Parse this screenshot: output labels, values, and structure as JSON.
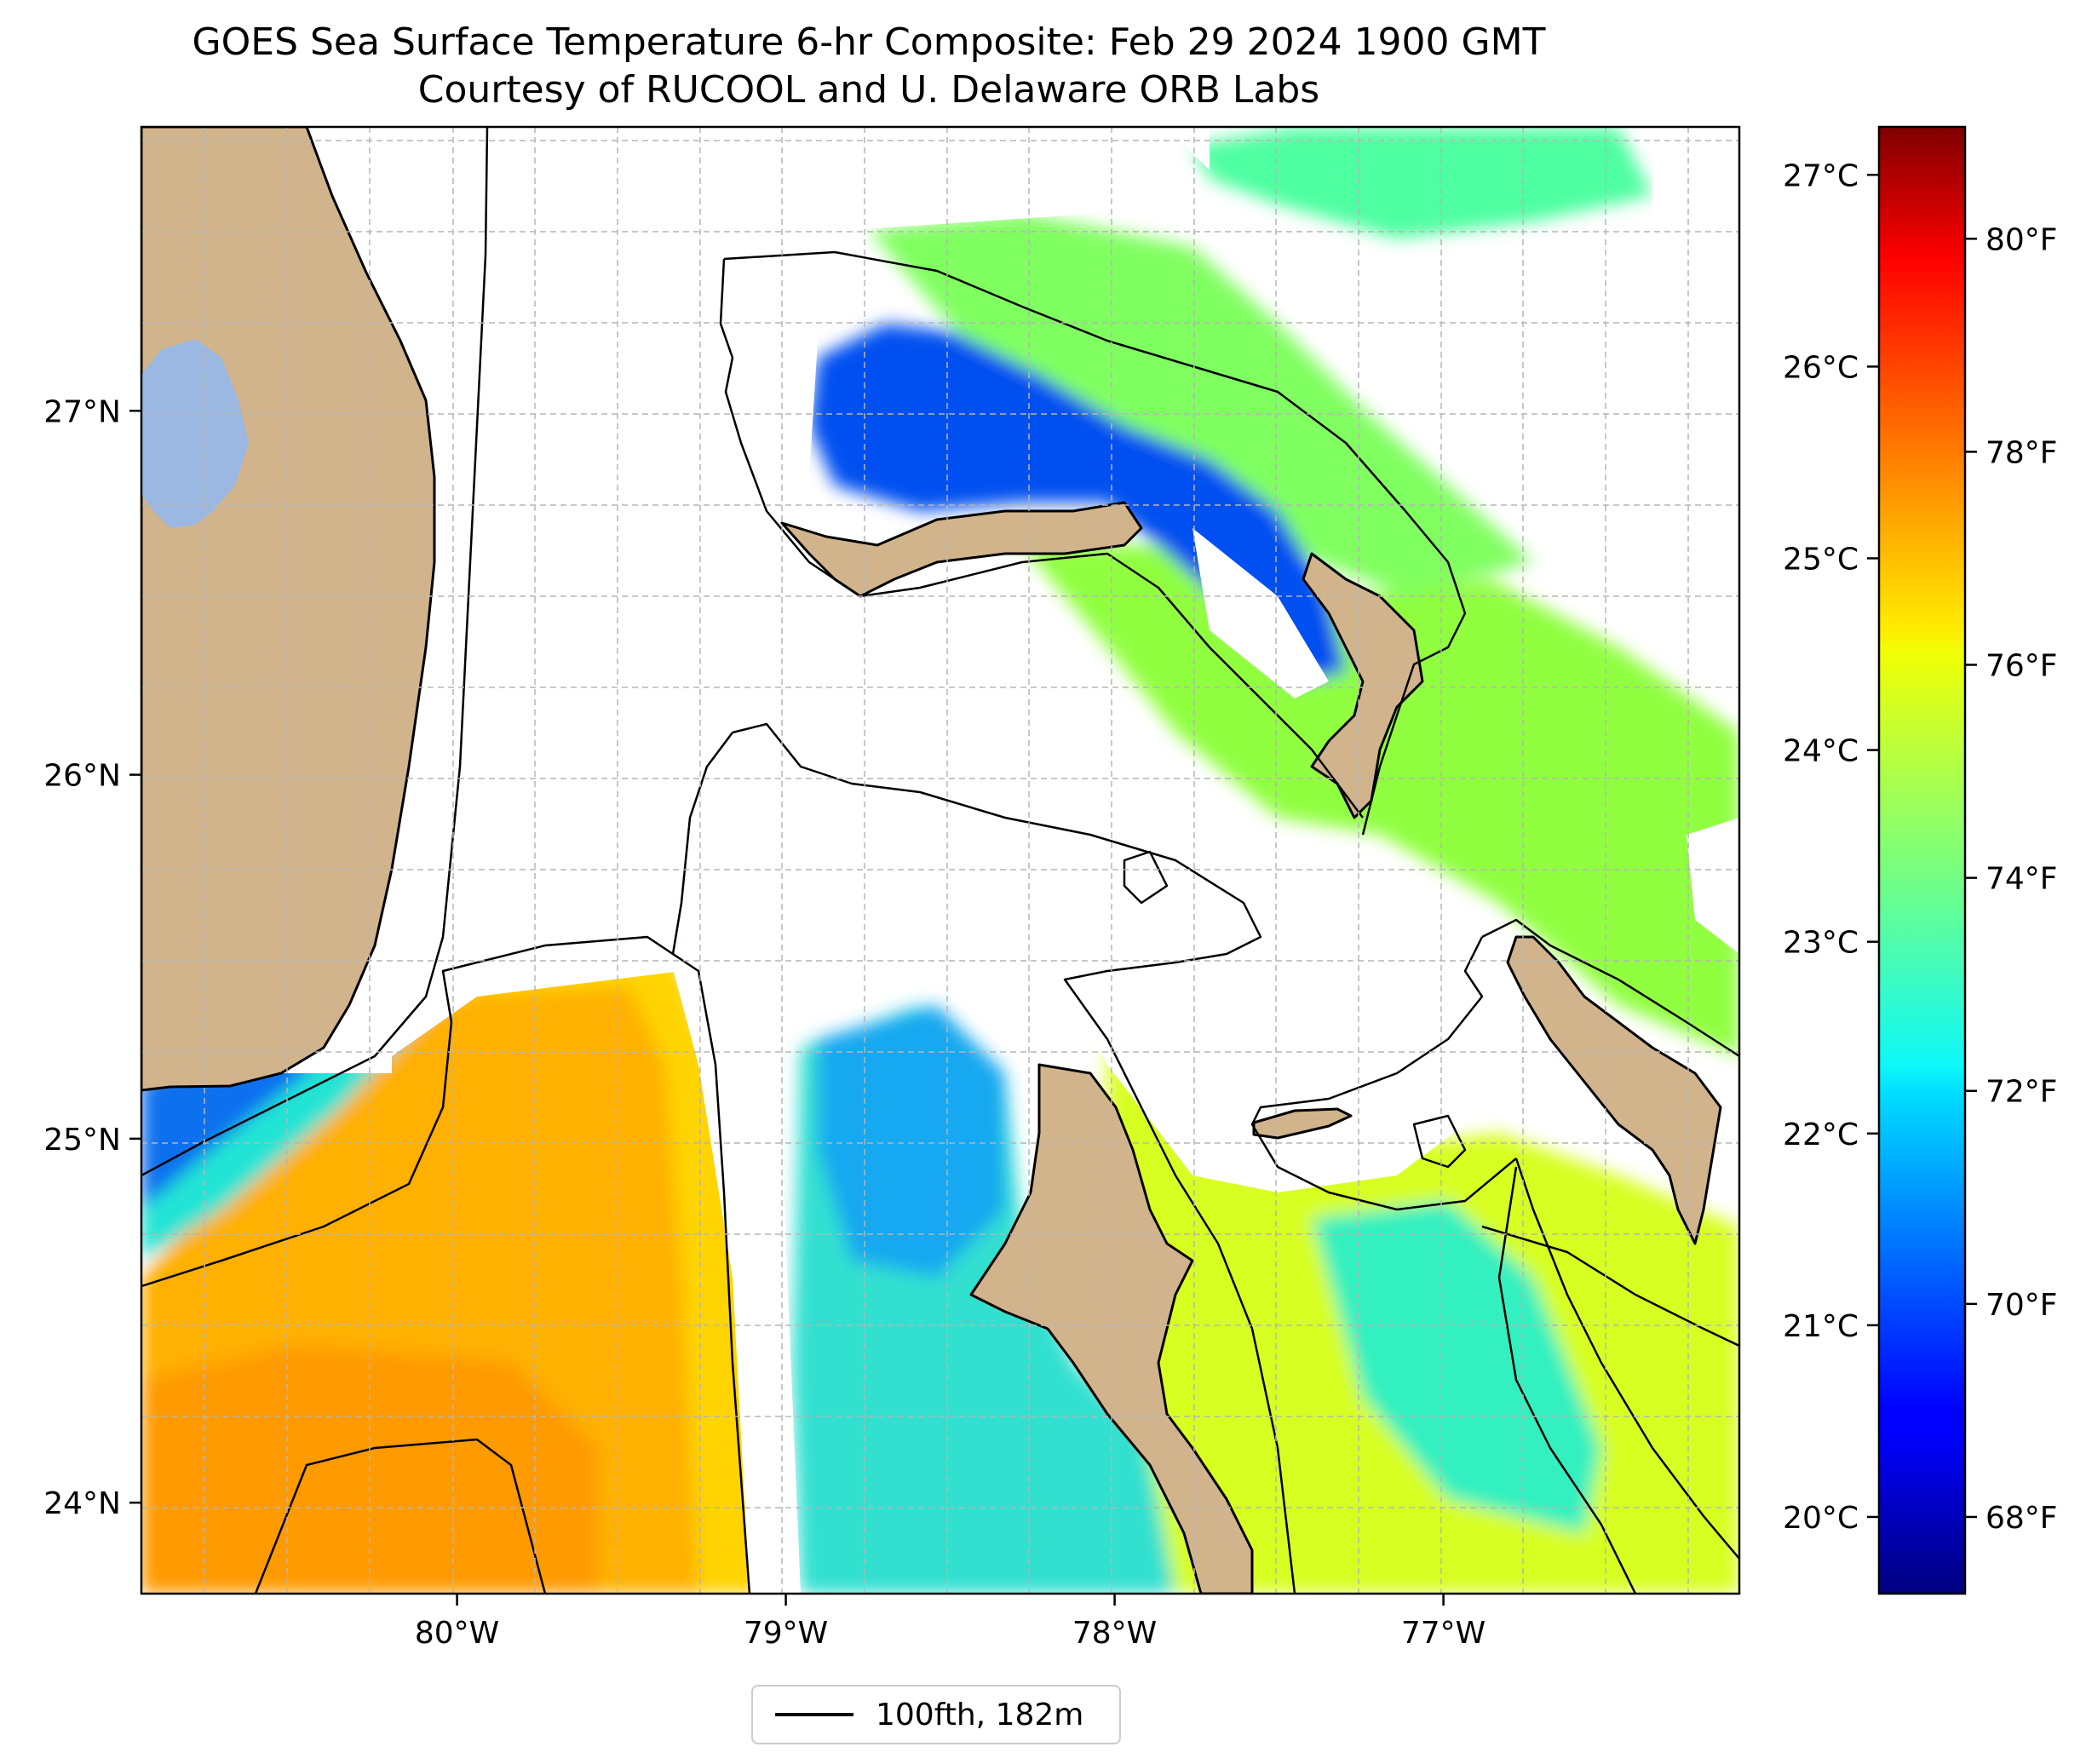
{
  "title": {
    "line1": "GOES Sea Surface Temperature 6-hr Composite: Feb 29 2024 1900 GMT",
    "line2": "Courtesy of RUCOOL and U. Delaware ORB Labs"
  },
  "map": {
    "lon_range": [
      -80.96,
      -76.1
    ],
    "lat_range": [
      23.75,
      27.78
    ],
    "lon_ticks": [
      {
        "value": -80,
        "label": "80°W"
      },
      {
        "value": -79,
        "label": "79°W"
      },
      {
        "value": -78,
        "label": "78°W"
      },
      {
        "value": -77,
        "label": "77°W"
      }
    ],
    "lat_ticks": [
      {
        "value": 27,
        "label": "27°N"
      },
      {
        "value": 26,
        "label": "26°N"
      },
      {
        "value": 25,
        "label": "25°N"
      },
      {
        "value": 24,
        "label": "24°N"
      }
    ],
    "colors": {
      "land": "#d2b48c",
      "lake": "#9ab8e2",
      "gridline": "#b5b5b5"
    },
    "features": [
      "Florida",
      "Lake Okeechobee",
      "Grand Bahama",
      "Abaco",
      "Andros",
      "Eleuthera",
      "New Providence"
    ]
  },
  "colorbar": {
    "colormap": "jet",
    "celsius_range": [
      19.6,
      27.25
    ],
    "celsius_ticks": [
      {
        "value": 27,
        "label": "27°C"
      },
      {
        "value": 26,
        "label": "26°C"
      },
      {
        "value": 25,
        "label": "25°C"
      },
      {
        "value": 24,
        "label": "24°C"
      },
      {
        "value": 23,
        "label": "23°C"
      },
      {
        "value": 22,
        "label": "22°C"
      },
      {
        "value": 21,
        "label": "21°C"
      },
      {
        "value": 20,
        "label": "20°C"
      }
    ],
    "fahrenheit_ticks": [
      {
        "value": 80,
        "label": "80°F"
      },
      {
        "value": 78,
        "label": "78°F"
      },
      {
        "value": 76,
        "label": "76°F"
      },
      {
        "value": 74,
        "label": "74°F"
      },
      {
        "value": 72,
        "label": "72°F"
      },
      {
        "value": 70,
        "label": "70°F"
      },
      {
        "value": 68,
        "label": "68°F"
      }
    ]
  },
  "legend": {
    "entries": [
      {
        "label": "100fth, 182m",
        "color": "#000000"
      }
    ]
  }
}
